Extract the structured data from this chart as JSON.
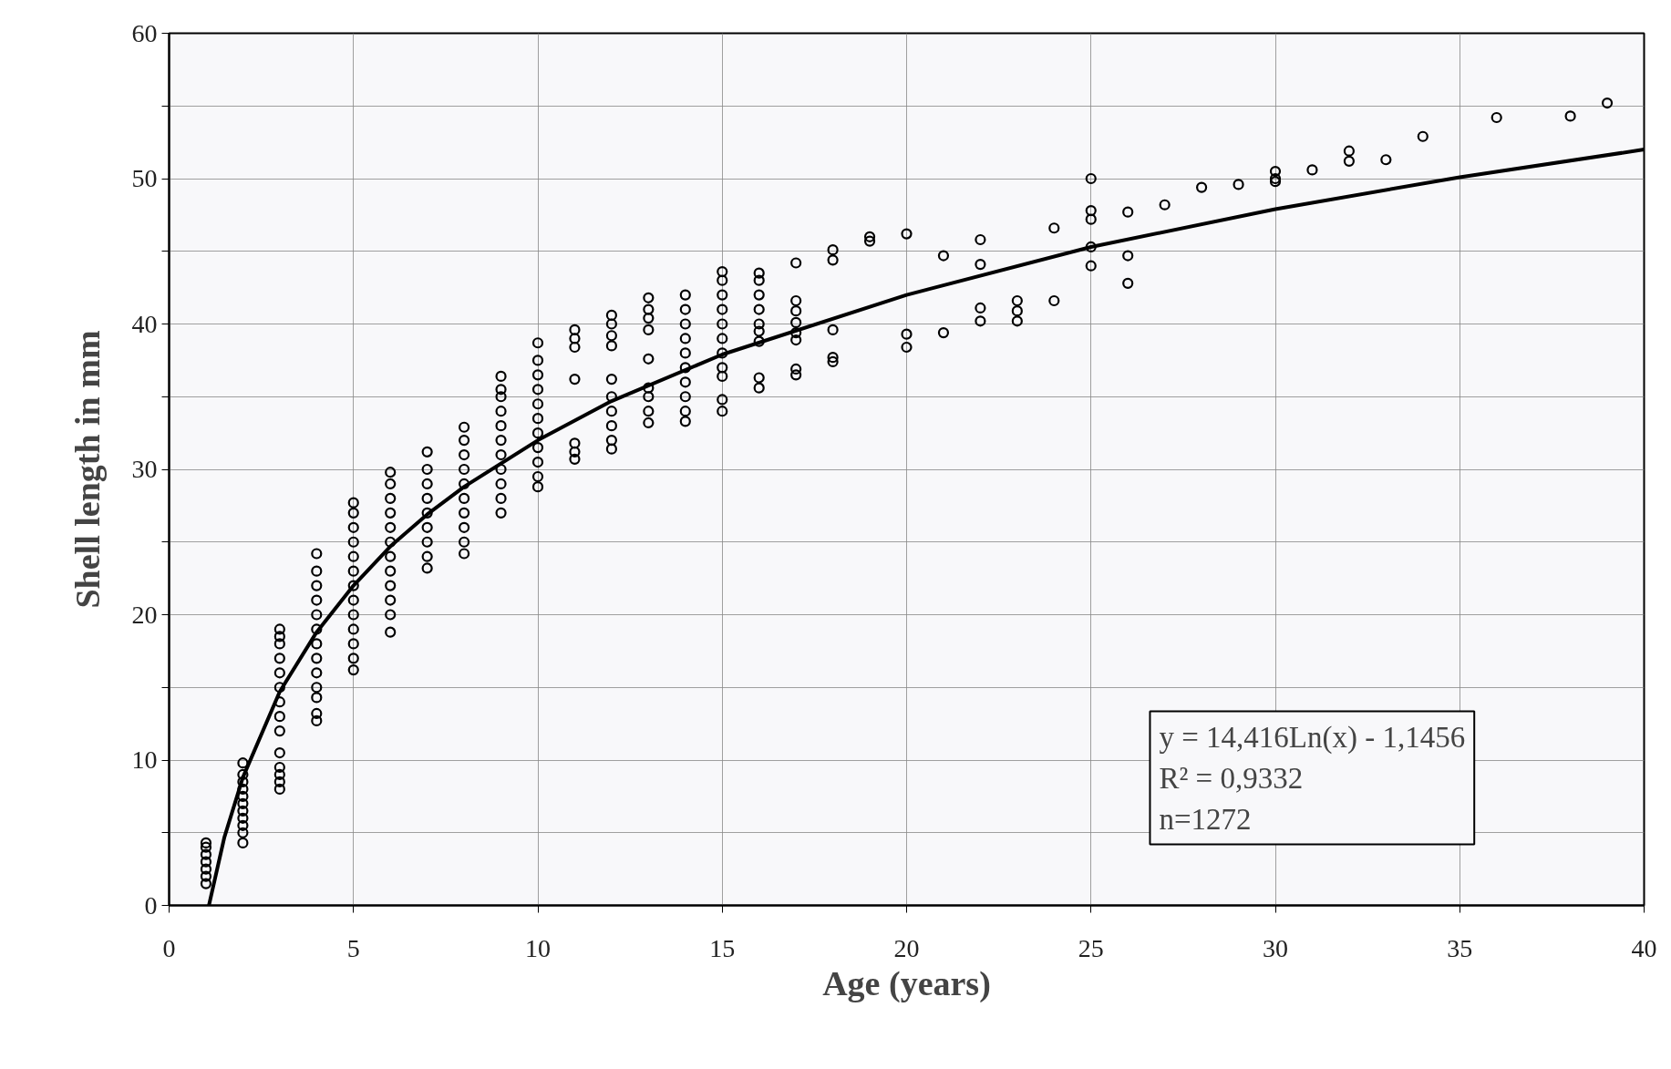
{
  "chart_data": {
    "type": "scatter",
    "xlabel": "Age (years)",
    "ylabel": "Shell length in mm",
    "xlim": [
      0,
      40
    ],
    "xticks": [
      0,
      5,
      10,
      15,
      20,
      25,
      30,
      35,
      40
    ],
    "ylim": [
      0,
      60
    ],
    "yticks": [
      0,
      {
        "value": 5,
        "label": null
      },
      10,
      {
        "value": 15,
        "label": null
      },
      20,
      {
        "value": 25,
        "label": null
      },
      30,
      {
        "value": 35,
        "label": null
      },
      40,
      {
        "value": 45,
        "label": null
      },
      50,
      {
        "value": 55,
        "label": null
      },
      60
    ],
    "grid": true,
    "marker": "circle",
    "annotations": [
      "y = 14,416Ln(x) - 1,1456",
      "R² = 0,9332",
      "n=1272"
    ],
    "series": [
      {
        "color": "#000000",
        "x": [
          1,
          1,
          1,
          1,
          1,
          1,
          1,
          2,
          2,
          2,
          2,
          2,
          2,
          2,
          2,
          2,
          2,
          2,
          3,
          3,
          3,
          3,
          3,
          3,
          3,
          3,
          3,
          3,
          3,
          3,
          3,
          3,
          4,
          4,
          4,
          4,
          4,
          4,
          4,
          4,
          4,
          4,
          4,
          4,
          4,
          5,
          5,
          5,
          5,
          5,
          5,
          5,
          5,
          5,
          5,
          5,
          5,
          5,
          6,
          6,
          6,
          6,
          6,
          6,
          6,
          6,
          6,
          6,
          6,
          6,
          7,
          7,
          7,
          7,
          7,
          7,
          7,
          7,
          7,
          8,
          8,
          8,
          8,
          8,
          8,
          8,
          8,
          8,
          8,
          9,
          9,
          9,
          9,
          9,
          9,
          9,
          9,
          9,
          9,
          9,
          10,
          10,
          10,
          10,
          10,
          10,
          10,
          10,
          10,
          10,
          10,
          11,
          11,
          11,
          11,
          11,
          11,
          11,
          12,
          12,
          12,
          12,
          12,
          12,
          12,
          12,
          12,
          12,
          13,
          13,
          13,
          13,
          13,
          13,
          13,
          13,
          13,
          14,
          14,
          14,
          14,
          14,
          14,
          14,
          14,
          14,
          14,
          15,
          15,
          15,
          15,
          15,
          15,
          15,
          15,
          15,
          15,
          15,
          16,
          16,
          16,
          16,
          16,
          16,
          16,
          16,
          16,
          17,
          17,
          17,
          17,
          17,
          17,
          17,
          17,
          18,
          18,
          18,
          18,
          18,
          19,
          19,
          20,
          20,
          20,
          21,
          21,
          22,
          22,
          22,
          22,
          23,
          23,
          23,
          24,
          24,
          25,
          25,
          25,
          25,
          25,
          26,
          26,
          26,
          27,
          28,
          29,
          30,
          30,
          30,
          31,
          32,
          32,
          33,
          34,
          36,
          38,
          39
        ],
        "values": [
          1.5,
          2,
          2.5,
          3,
          3.5,
          4,
          4.3,
          4.3,
          5,
          5.5,
          6,
          6.5,
          7,
          7.5,
          8,
          8.5,
          9,
          9.8,
          8,
          8.5,
          9,
          9.5,
          10.5,
          12,
          13,
          14,
          15,
          16,
          17,
          18,
          18.5,
          19,
          12.7,
          13.2,
          14.3,
          15,
          16,
          17,
          18,
          19,
          20,
          21,
          22,
          23,
          24.2,
          16.2,
          17,
          18,
          19,
          20,
          21,
          22,
          23,
          24,
          25,
          26,
          27,
          27.7,
          18.8,
          20,
          21,
          22,
          23,
          24,
          25,
          26,
          27,
          28,
          29,
          29.8,
          23.2,
          24,
          25,
          26,
          27,
          28,
          29,
          30,
          31.2,
          24.2,
          25,
          26,
          27,
          28,
          29,
          30,
          31,
          32,
          32.9,
          27,
          28,
          29,
          30,
          31,
          32,
          33,
          34,
          35,
          35.5,
          36.4,
          28.8,
          29.5,
          30.5,
          31.5,
          32.5,
          33.5,
          34.5,
          35.5,
          36.5,
          37.5,
          38.7,
          30.7,
          31.2,
          31.8,
          36.2,
          38.4,
          39,
          39.6,
          31.4,
          32,
          33,
          34,
          35,
          36.2,
          38.5,
          39.2,
          40,
          40.6,
          33.2,
          34,
          35,
          35.6,
          37.6,
          39.6,
          40.4,
          41,
          41.8,
          33.3,
          34,
          35,
          36,
          37,
          38,
          39,
          40,
          41,
          42,
          34,
          34.8,
          36.4,
          37,
          38,
          39,
          40,
          41,
          42,
          43,
          43.6,
          35.6,
          36.3,
          38.8,
          39.5,
          40,
          41,
          42,
          43,
          43.5,
          36.5,
          36.9,
          38.9,
          39.4,
          40.1,
          40.9,
          41.6,
          44.2,
          37.4,
          37.7,
          39.6,
          44.4,
          45.1,
          45.7,
          46,
          46.2,
          39.3,
          38.4,
          44.7,
          39.4,
          45.8,
          44.1,
          41.1,
          40.2,
          41.6,
          40.9,
          40.2,
          46.6,
          41.6,
          50,
          47.8,
          47.2,
          45.3,
          44,
          47.7,
          44.7,
          42.8,
          48.2,
          49.4,
          49.6,
          50.5,
          50,
          49.8,
          50.6,
          51.9,
          51.2,
          51.3,
          52.9,
          54.2,
          54.3,
          55.2
        ]
      },
      {
        "type": "line",
        "color": "#000000",
        "marker": "none",
        "line_style": "solid",
        "x": [
          1.08,
          1.5,
          2,
          3,
          4,
          5,
          6,
          7,
          8,
          10,
          12,
          15,
          20,
          25,
          30,
          35,
          40
        ],
        "values": [
          0,
          4.7,
          8.8,
          14.7,
          18.8,
          22,
          24.7,
          26.9,
          28.8,
          32,
          34.7,
          37.9,
          42,
          45.3,
          47.9,
          50.1,
          52
        ]
      }
    ]
  }
}
